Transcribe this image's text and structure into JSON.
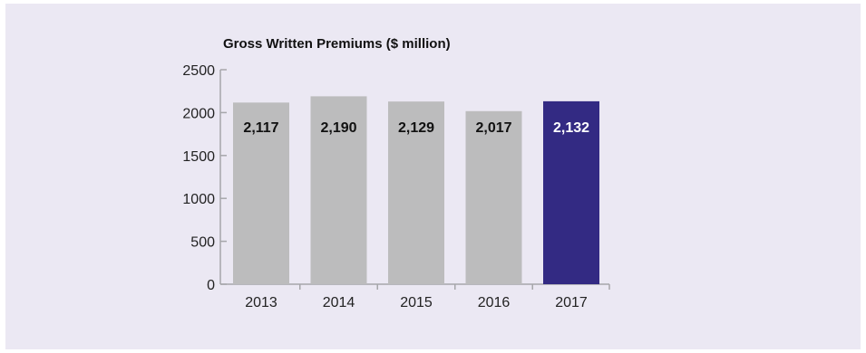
{
  "colors": {
    "background": "#ebe8f3",
    "bar_default": "#bcbcbd",
    "bar_highlight": "#332a83",
    "axis": "#a6a6aa",
    "label_dark": "#111111",
    "label_light": "#ffffff"
  },
  "chart_data": {
    "type": "bar",
    "title": "Gross Written Premiums ($ million)",
    "xlabel": "",
    "ylabel": "",
    "categories": [
      "2013",
      "2014",
      "2015",
      "2016",
      "2017"
    ],
    "values": [
      2117,
      2190,
      2129,
      2017,
      2132
    ],
    "data_labels": [
      "2,117",
      "2,190",
      "2,129",
      "2,017",
      "2,132"
    ],
    "highlighted_category": "2017",
    "ylim": [
      0,
      2500
    ],
    "yticks": [
      0,
      500,
      1000,
      1500,
      2000,
      2500
    ],
    "grid": false,
    "legend": "none"
  }
}
